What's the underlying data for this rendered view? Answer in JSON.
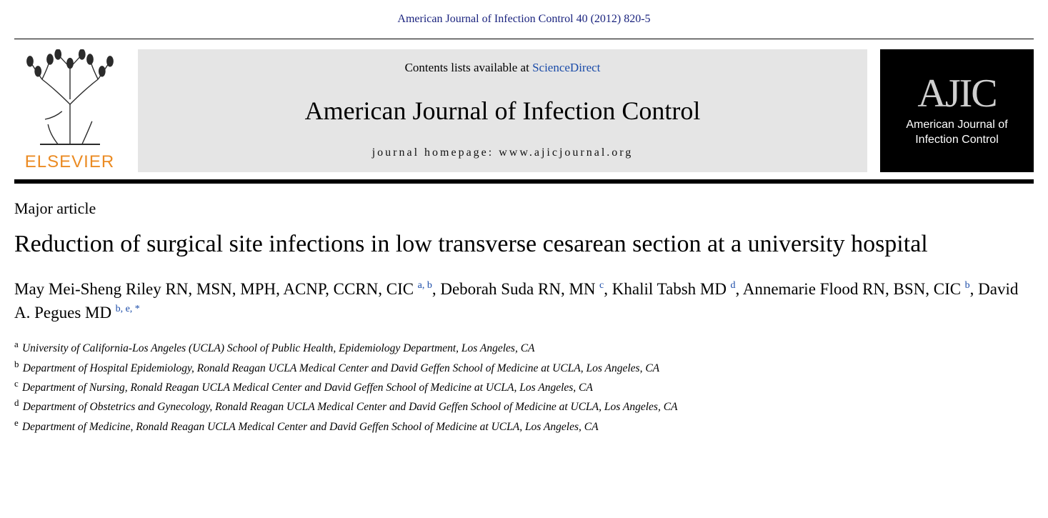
{
  "citation": "American Journal of Infection Control 40 (2012) 820-5",
  "header": {
    "contents_prefix": "Contents lists available at ",
    "sciencedirect": "ScienceDirect",
    "journal_name": "American Journal of Infection Control",
    "homepage_prefix": "journal homepage: ",
    "homepage_url": "www.ajicjournal.org",
    "elsevier_label": "ELSEVIER",
    "ajic_abbrev": "AJIC",
    "ajic_full_line1": "American Journal of",
    "ajic_full_line2": "Infection Control"
  },
  "article": {
    "type": "Major article",
    "title": "Reduction of surgical site infections in low transverse cesarean section at a university hospital",
    "authors_html_parts": [
      {
        "name": "May Mei-Sheng Riley RN, MSN, MPH, ACNP, CCRN, CIC",
        "sup": "a, b",
        "after": ", "
      },
      {
        "name": "Deborah Suda RN, MN",
        "sup": "c",
        "after": ", "
      },
      {
        "name": "Khalil Tabsh MD",
        "sup": "d",
        "after": ", "
      },
      {
        "name": "Annemarie Flood RN, BSN, CIC",
        "sup": "b",
        "after": ", "
      },
      {
        "name": "David A. Pegues MD",
        "sup": "b, e, *",
        "after": ""
      }
    ],
    "affiliations": [
      {
        "key": "a",
        "text": "University of California-Los Angeles (UCLA) School of Public Health, Epidemiology Department, Los Angeles, CA"
      },
      {
        "key": "b",
        "text": "Department of Hospital Epidemiology, Ronald Reagan UCLA Medical Center and David Geffen School of Medicine at UCLA, Los Angeles, CA"
      },
      {
        "key": "c",
        "text": "Department of Nursing, Ronald Reagan UCLA Medical Center and David Geffen School of Medicine at UCLA, Los Angeles, CA"
      },
      {
        "key": "d",
        "text": "Department of Obstetrics and Gynecology, Ronald Reagan UCLA Medical Center and David Geffen School of Medicine at UCLA, Los Angeles, CA"
      },
      {
        "key": "e",
        "text": "Department of Medicine, Ronald Reagan UCLA Medical Center and David Geffen School of Medicine at UCLA, Los Angeles, CA"
      }
    ]
  },
  "colors": {
    "link_blue": "#1a4ba8",
    "citation_navy": "#1a237e",
    "elsevier_orange": "#eb8b23",
    "banner_gray": "#e5e5e5",
    "black": "#000000",
    "white": "#ffffff"
  },
  "typography": {
    "citation_fs": 16,
    "journal_big_fs": 36,
    "title_fs": 34,
    "author_fs": 23,
    "affil_fs": 15.5
  }
}
